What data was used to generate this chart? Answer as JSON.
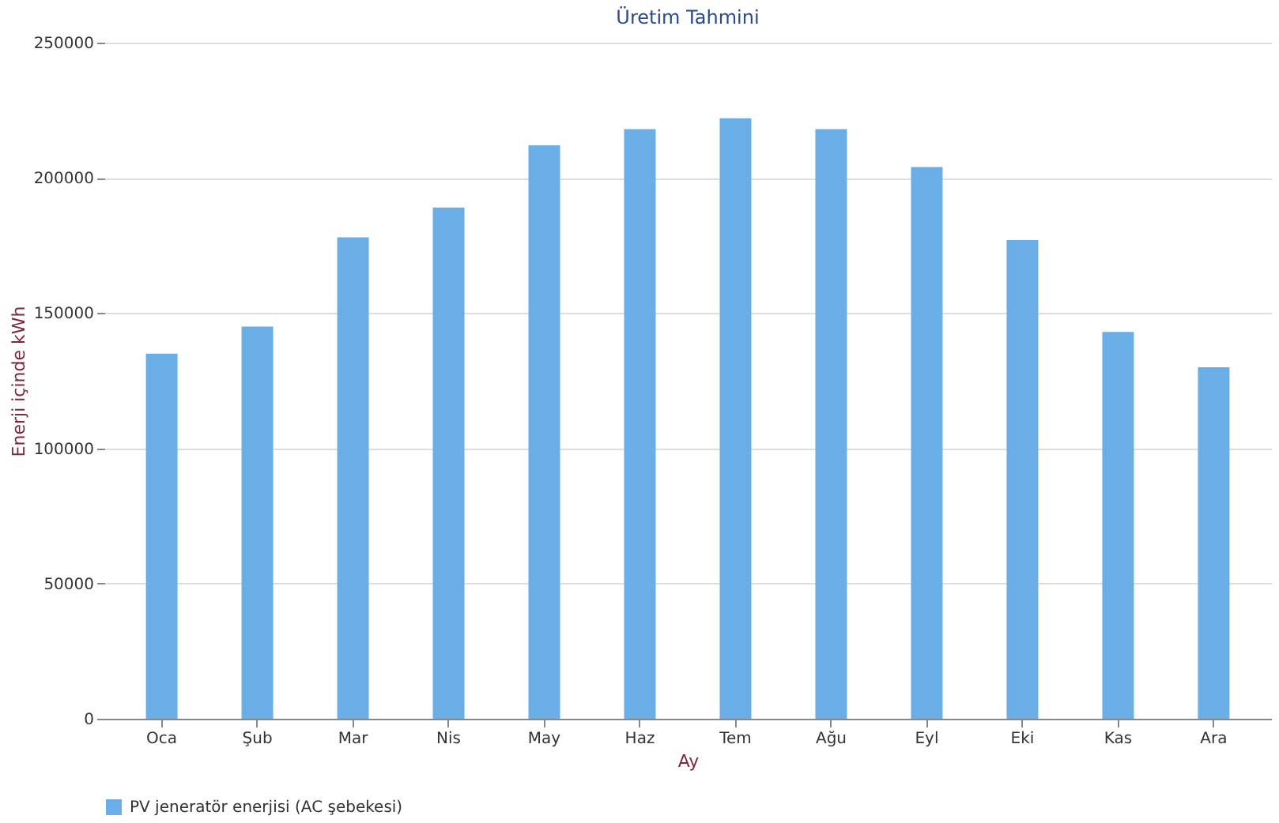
{
  "chart_data": {
    "type": "bar",
    "title": "Üretim Tahmini",
    "xlabel": "Ay",
    "ylabel": "Enerji içinde kWh",
    "categories": [
      "Oca",
      "Şub",
      "Mar",
      "Nis",
      "May",
      "Haz",
      "Tem",
      "Ağu",
      "Eyl",
      "Eki",
      "Kas",
      "Ara"
    ],
    "series": [
      {
        "name": "PV jeneratör enerjisi (AC şebekesi)",
        "color": "#6aaee8",
        "values": [
          135000,
          145000,
          178000,
          189000,
          212000,
          218000,
          222000,
          218000,
          204000,
          177000,
          143000,
          130000
        ]
      }
    ],
    "ylim": [
      0,
      250000
    ],
    "yticks": [
      0,
      50000,
      100000,
      150000,
      200000,
      250000
    ],
    "grid": "y",
    "legend": "bottom"
  }
}
